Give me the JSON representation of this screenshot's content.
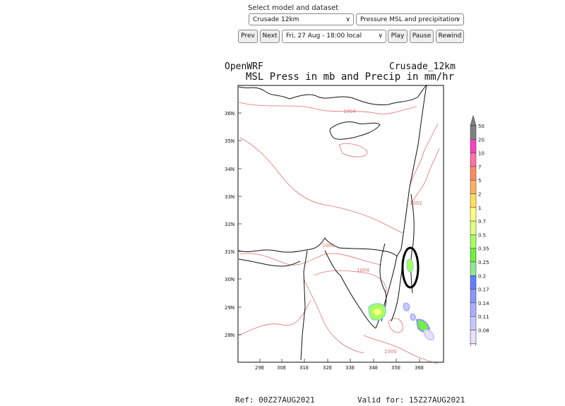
{
  "controls": {
    "title": "Select model and dataset",
    "model_value": "Crusade 12km",
    "dataset_value": "Pressure MSL and precipitation",
    "time_value": "Fri, 27 Aug - 18:00 local",
    "prev_label": "Prev",
    "next_label": "Next",
    "play_label": "Play",
    "pause_label": "Pause",
    "rewind_label": "Rewind"
  },
  "map": {
    "source": "OpenWRF",
    "model": "Crusade_12km",
    "title": "MSL Press in mb and Precip in mm/hr",
    "lat_labels": [
      "36N",
      "35N",
      "34N",
      "33N",
      "32N",
      "31N",
      "30N",
      "29N",
      "28N"
    ],
    "lon_labels": [
      "29E",
      "30E",
      "31E",
      "32E",
      "33E",
      "34E",
      "35E",
      "36E"
    ],
    "isobar_labels": [
      "1004",
      "1002",
      "1000",
      "1004",
      "1000"
    ],
    "colorbar": {
      "values": [
        "50",
        "20",
        "10",
        "7",
        "5",
        "2",
        "1",
        "0.7",
        "0.5",
        "0.35",
        "0.25",
        "0.2",
        "0.17",
        "0.14",
        "0.11",
        "0.08"
      ],
      "colors": [
        "#808080",
        "#ff40c0",
        "#ff6fa8",
        "#ff8c60",
        "#ffb060",
        "#ffe060",
        "#ffff80",
        "#e0ff80",
        "#a8ff60",
        "#70f040",
        "#90e890",
        "#6080ff",
        "#8898ff",
        "#a8b0ff",
        "#c8c8ff",
        "#e8e0ff"
      ]
    },
    "colors": {
      "coast": "#111111",
      "isobar": "#e07070",
      "highlight_circle": "#000000"
    }
  },
  "footer": {
    "ref": "Ref: 00Z27AUG2021",
    "valid": "Valid for: 15Z27AUG2021"
  }
}
